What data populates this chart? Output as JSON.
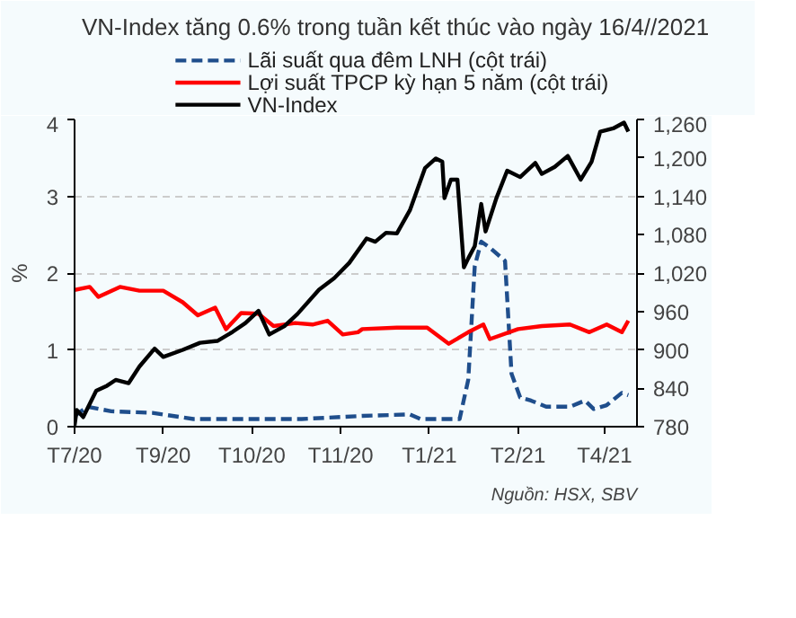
{
  "chart_data": {
    "type": "line",
    "title": "VN-Index tăng 0.6% trong tuần kết thúc vào ngày 16/4//2021",
    "ylabel": "%",
    "annotations": [
      "Nguồn: HSX, SBV"
    ],
    "xlim": [
      "2020-07-30",
      "2021-04-16"
    ],
    "xticks": [
      {
        "value": "2020-07-30",
        "label": "T7/20"
      },
      {
        "value": "2020-09-09",
        "label": "T9/20"
      },
      {
        "value": "2020-10-20",
        "label": "T10/20"
      },
      {
        "value": "2020-11-30",
        "label": "T11/20"
      },
      {
        "value": "2021-01-10",
        "label": "T1/21"
      },
      {
        "value": "2021-02-20",
        "label": "T2/21"
      },
      {
        "value": "2021-04-01",
        "label": "T4/21"
      }
    ],
    "ylim": [
      0,
      4
    ],
    "yticks": [
      0,
      1,
      2,
      3,
      4
    ],
    "y2lim": [
      780,
      1260
    ],
    "y2ticks": [
      {
        "value": 780,
        "label": "780"
      },
      {
        "value": 840,
        "label": "840"
      },
      {
        "value": 900,
        "label": "900"
      },
      {
        "value": 960,
        "label": "960"
      },
      {
        "value": 1020,
        "label": "1,020"
      },
      {
        "value": 1080,
        "label": "1,080"
      },
      {
        "value": 1140,
        "label": "1,140"
      },
      {
        "value": 1200,
        "label": "1,200"
      },
      {
        "value": 1260,
        "label": "1,260"
      }
    ],
    "grid": "y",
    "legend": "top",
    "marker": "none",
    "series": [
      {
        "name": "Lãi suất qua đêm LNH (cột trái)",
        "color": "#1f4e8c",
        "line_style": "dashed",
        "x": [
          "2020-07-30",
          "2020-08-05",
          "2020-08-16",
          "2020-09-04",
          "2020-09-23",
          "2020-11-12",
          "2020-12-10",
          "2021-01-01",
          "2021-01-06",
          "2021-01-24",
          "2021-01-28",
          "2021-01-31",
          "2021-02-03",
          "2021-02-07",
          "2021-02-14",
          "2021-02-17",
          "2021-02-21",
          "2021-02-26",
          "2021-03-05",
          "2021-03-16",
          "2021-03-23",
          "2021-03-27",
          "2021-04-02",
          "2021-04-09",
          "2021-04-12"
        ],
        "values": [
          0.14,
          0.26,
          0.2,
          0.18,
          0.1,
          0.1,
          0.14,
          0.16,
          0.1,
          0.1,
          0.61,
          2.09,
          2.41,
          2.33,
          2.16,
          0.69,
          0.38,
          0.34,
          0.26,
          0.26,
          0.34,
          0.23,
          0.28,
          0.44,
          0.41
        ]
      },
      {
        "name": "Lợi suất TPCP kỳ hạn 5 năm (cột trái)",
        "color": "#ff0000",
        "line_style": "solid",
        "x": [
          "2020-07-30",
          "2020-08-06",
          "2020-08-10",
          "2020-08-20",
          "2020-08-29",
          "2020-09-09",
          "2020-09-18",
          "2020-09-25",
          "2020-10-03",
          "2020-10-08",
          "2020-10-15",
          "2020-10-23",
          "2020-10-30",
          "2020-11-09",
          "2020-11-17",
          "2020-11-24",
          "2020-12-01",
          "2020-12-08",
          "2020-12-10",
          "2020-12-26",
          "2021-01-09",
          "2021-01-19",
          "2021-01-28",
          "2021-02-04",
          "2021-02-07",
          "2021-02-20",
          "2021-03-03",
          "2021-03-16",
          "2021-03-25",
          "2021-04-02",
          "2021-04-09",
          "2021-04-12"
        ],
        "values": [
          1.78,
          1.82,
          1.69,
          1.82,
          1.77,
          1.77,
          1.62,
          1.45,
          1.55,
          1.27,
          1.48,
          1.47,
          1.31,
          1.35,
          1.33,
          1.38,
          1.2,
          1.23,
          1.27,
          1.29,
          1.29,
          1.08,
          1.23,
          1.33,
          1.14,
          1.27,
          1.31,
          1.33,
          1.23,
          1.33,
          1.23,
          1.38
        ]
      },
      {
        "name": "VN-Index",
        "color": "#000000",
        "line_style": "solid",
        "axis": "y2",
        "x": [
          "2020-07-30",
          "2020-07-31",
          "2020-08-03",
          "2020-08-09",
          "2020-08-14",
          "2020-08-18",
          "2020-08-24",
          "2020-08-29",
          "2020-09-05",
          "2020-09-09",
          "2020-09-18",
          "2020-09-26",
          "2020-10-04",
          "2020-10-11",
          "2020-10-17",
          "2020-10-23",
          "2020-10-28",
          "2020-11-04",
          "2020-11-10",
          "2020-11-20",
          "2020-11-27",
          "2020-12-04",
          "2020-12-12",
          "2020-12-16",
          "2020-12-21",
          "2020-12-26",
          "2021-01-01",
          "2021-01-08",
          "2021-01-13",
          "2021-01-16",
          "2021-01-17",
          "2021-01-20",
          "2021-01-23",
          "2021-01-26",
          "2021-01-28",
          "2021-01-31",
          "2021-02-03",
          "2021-02-05",
          "2021-02-10",
          "2021-02-15",
          "2021-02-21",
          "2021-02-28",
          "2021-03-03",
          "2021-03-09",
          "2021-03-15",
          "2021-03-21",
          "2021-03-26",
          "2021-03-30",
          "2021-04-05",
          "2021-04-10",
          "2021-04-12"
        ],
        "values": [
          782,
          806,
          795,
          836,
          844,
          853,
          848,
          874,
          902,
          889,
          900,
          911,
          914,
          928,
          942,
          961,
          924,
          937,
          956,
          994,
          1012,
          1036,
          1074,
          1069,
          1083,
          1082,
          1118,
          1184,
          1199,
          1194,
          1137,
          1166,
          1166,
          1029,
          1043,
          1062,
          1128,
          1085,
          1137,
          1180,
          1170,
          1192,
          1175,
          1186,
          1203,
          1166,
          1194,
          1241,
          1246,
          1255,
          1241
        ]
      }
    ]
  }
}
